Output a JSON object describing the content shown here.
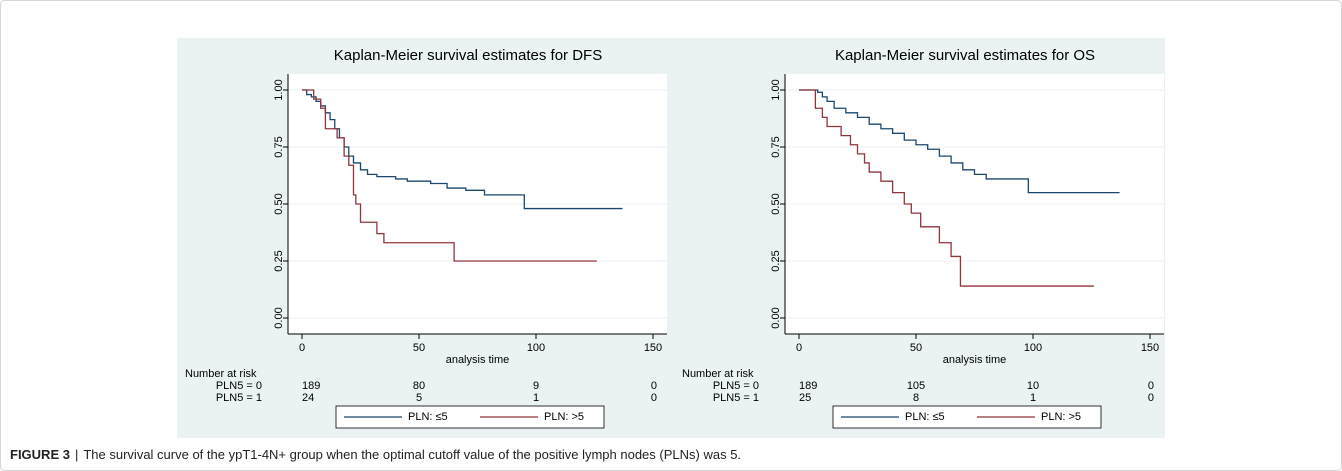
{
  "chart_data": [
    {
      "type": "line",
      "title": "Kaplan-Meier survival estimates for DFS",
      "x_label": "analysis time",
      "xlim": [
        0,
        150
      ],
      "xticks": [
        0,
        50,
        100,
        150
      ],
      "ylim": [
        0,
        1
      ],
      "yticks": [
        {
          "value": 0,
          "label": "0.00"
        },
        {
          "value": 0.25,
          "label": "0.25"
        },
        {
          "value": 0.5,
          "label": "0.50"
        },
        {
          "value": 0.75,
          "label": "0.75"
        },
        {
          "value": 1,
          "label": "1.00"
        }
      ],
      "grid": true,
      "step": true,
      "legend": "bottom",
      "series": [
        {
          "name": "PLN: ≤5",
          "color": "#1a476f",
          "x": [
            0,
            2,
            4,
            6,
            8,
            10,
            12,
            14,
            16,
            18,
            20,
            22,
            25,
            28,
            32,
            40,
            45,
            55,
            62,
            70,
            78,
            95,
            137
          ],
          "values": [
            1,
            0.98,
            0.97,
            0.95,
            0.93,
            0.9,
            0.87,
            0.83,
            0.79,
            0.75,
            0.71,
            0.68,
            0.65,
            0.63,
            0.62,
            0.61,
            0.6,
            0.59,
            0.57,
            0.56,
            0.54,
            0.48,
            0.48
          ]
        },
        {
          "name": "PLN: >5",
          "color": "#90353b",
          "x": [
            0,
            5,
            8,
            10,
            15,
            18,
            20,
            22,
            23,
            25,
            32,
            35,
            65,
            126
          ],
          "values": [
            1,
            0.96,
            0.92,
            0.83,
            0.79,
            0.71,
            0.67,
            0.54,
            0.5,
            0.42,
            0.37,
            0.33,
            0.25,
            0.25
          ]
        }
      ],
      "risk_table": {
        "title": "Number at risk",
        "rows": [
          {
            "label": "PLN5 = 0",
            "values": [
              189,
              80,
              9,
              0
            ]
          },
          {
            "label": "PLN5 = 1",
            "values": [
              24,
              5,
              1,
              0
            ]
          }
        ]
      }
    },
    {
      "type": "line",
      "title": "Kaplan-Meier survival estimates for OS",
      "x_label": "analysis time",
      "xlim": [
        0,
        150
      ],
      "xticks": [
        0,
        50,
        100,
        150
      ],
      "ylim": [
        0,
        1
      ],
      "yticks": [
        {
          "value": 0,
          "label": "0.00"
        },
        {
          "value": 0.25,
          "label": "0.25"
        },
        {
          "value": 0.5,
          "label": "0.50"
        },
        {
          "value": 0.75,
          "label": "0.75"
        },
        {
          "value": 1,
          "label": "1.00"
        }
      ],
      "grid": true,
      "step": true,
      "legend": "bottom",
      "series": [
        {
          "name": "PLN: ≤5",
          "color": "#1a476f",
          "x": [
            0,
            8,
            10,
            12,
            15,
            20,
            25,
            30,
            35,
            40,
            45,
            50,
            55,
            60,
            65,
            70,
            75,
            80,
            98,
            137
          ],
          "values": [
            1,
            0.99,
            0.97,
            0.95,
            0.92,
            0.9,
            0.88,
            0.85,
            0.83,
            0.81,
            0.78,
            0.76,
            0.74,
            0.71,
            0.68,
            0.65,
            0.63,
            0.61,
            0.55,
            0.55
          ]
        },
        {
          "name": "PLN: >5",
          "color": "#90353b",
          "x": [
            0,
            7,
            10,
            12,
            18,
            22,
            25,
            28,
            30,
            35,
            40,
            45,
            48,
            52,
            60,
            65,
            69,
            126
          ],
          "values": [
            1,
            0.92,
            0.88,
            0.84,
            0.8,
            0.76,
            0.72,
            0.68,
            0.64,
            0.6,
            0.55,
            0.5,
            0.46,
            0.4,
            0.33,
            0.27,
            0.14,
            0.14
          ]
        }
      ],
      "risk_table": {
        "title": "Number at risk",
        "rows": [
          {
            "label": "PLN5 = 0",
            "values": [
              189,
              105,
              10,
              0
            ]
          },
          {
            "label": "PLN5 = 1",
            "values": [
              25,
              8,
              1,
              0
            ]
          }
        ]
      }
    }
  ],
  "caption": {
    "label": "FIGURE 3",
    "separator": "|",
    "text": "The survival curve of the ypT1-4N+ group when the optimal cutoff value of the positive lymph nodes (PLNs) was 5."
  }
}
